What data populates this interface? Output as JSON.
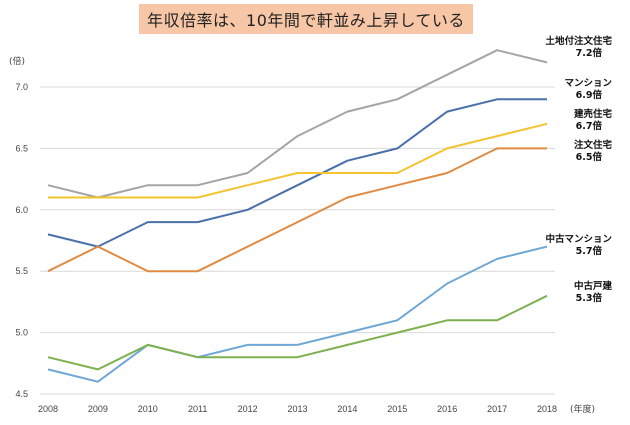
{
  "title": "年収倍率は、10年間で軒並み上昇している",
  "chart_data": {
    "type": "line",
    "title": "年収倍率は、10年間で軒並み上昇している",
    "y_unit_label": "(倍)",
    "x_unit_label": "(年度)",
    "ylim": [
      4.5,
      7.0
    ],
    "yticks": [
      "4.5",
      "5.0",
      "5.5",
      "6.0",
      "6.5",
      "7.0"
    ],
    "grid": true,
    "x": [
      "2008",
      "2009",
      "2010",
      "2011",
      "2012",
      "2013",
      "2014",
      "2015",
      "2016",
      "2017",
      "2018"
    ],
    "series": [
      {
        "key": "land",
        "name": "土地付注文住宅",
        "end_label": "7.2倍",
        "color": "#a5a5a5",
        "values": [
          6.2,
          6.1,
          6.2,
          6.2,
          6.3,
          6.6,
          6.8,
          6.9,
          7.1,
          7.3,
          7.2
        ]
      },
      {
        "key": "mansion",
        "name": "マンション",
        "end_label": "6.9倍",
        "color": "#4a70aa",
        "values": [
          5.8,
          5.7,
          5.9,
          5.9,
          6.0,
          6.2,
          6.4,
          6.5,
          6.8,
          6.9,
          6.9
        ]
      },
      {
        "key": "tateuri",
        "name": "建売住宅",
        "end_label": "6.7倍",
        "color": "#f2c431",
        "values": [
          6.1,
          6.1,
          6.1,
          6.1,
          6.2,
          6.3,
          6.3,
          6.3,
          6.5,
          6.6,
          6.7
        ]
      },
      {
        "key": "chumon",
        "name": "注文住宅",
        "end_label": "6.5倍",
        "color": "#e08b42",
        "values": [
          5.5,
          5.7,
          5.5,
          5.5,
          5.7,
          5.9,
          6.1,
          6.2,
          6.3,
          6.5,
          6.5
        ]
      },
      {
        "key": "used_mansion",
        "name": "中古マンション",
        "end_label": "5.7倍",
        "color": "#6fa8d6",
        "values": [
          4.7,
          4.6,
          4.9,
          4.8,
          4.9,
          4.9,
          5.0,
          5.1,
          5.4,
          5.6,
          5.7
        ]
      },
      {
        "key": "used_house",
        "name": "中古戸建",
        "end_label": "5.3倍",
        "color": "#7db04f",
        "values": [
          4.8,
          4.7,
          4.9,
          4.8,
          4.8,
          4.8,
          4.9,
          5.0,
          5.1,
          5.1,
          5.3
        ]
      }
    ]
  }
}
